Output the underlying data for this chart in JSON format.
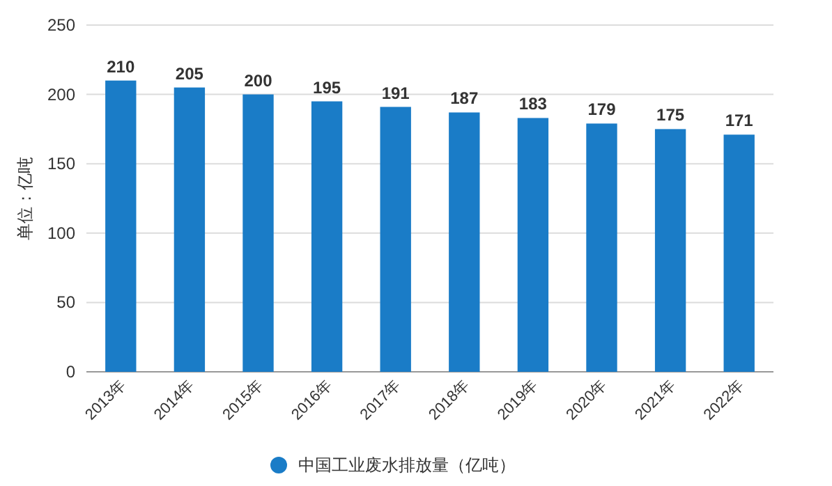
{
  "chart_data": {
    "type": "bar",
    "ylabel": "单位：亿吨",
    "categories": [
      "2013年",
      "2014年",
      "2015年",
      "2016年",
      "2017年",
      "2018年",
      "2019年",
      "2020年",
      "2021年",
      "2022年"
    ],
    "series": [
      {
        "name": "中国工业废水排放量（亿吨）",
        "color": "#1a7cc7",
        "values": [
          210,
          205,
          200,
          195,
          191,
          187,
          183,
          179,
          175,
          171
        ]
      }
    ],
    "ylim": [
      0,
      250
    ],
    "yticks": [
      0,
      50,
      100,
      150,
      200,
      250
    ],
    "grid": "y",
    "legend": "bottom",
    "data_labels": true
  }
}
